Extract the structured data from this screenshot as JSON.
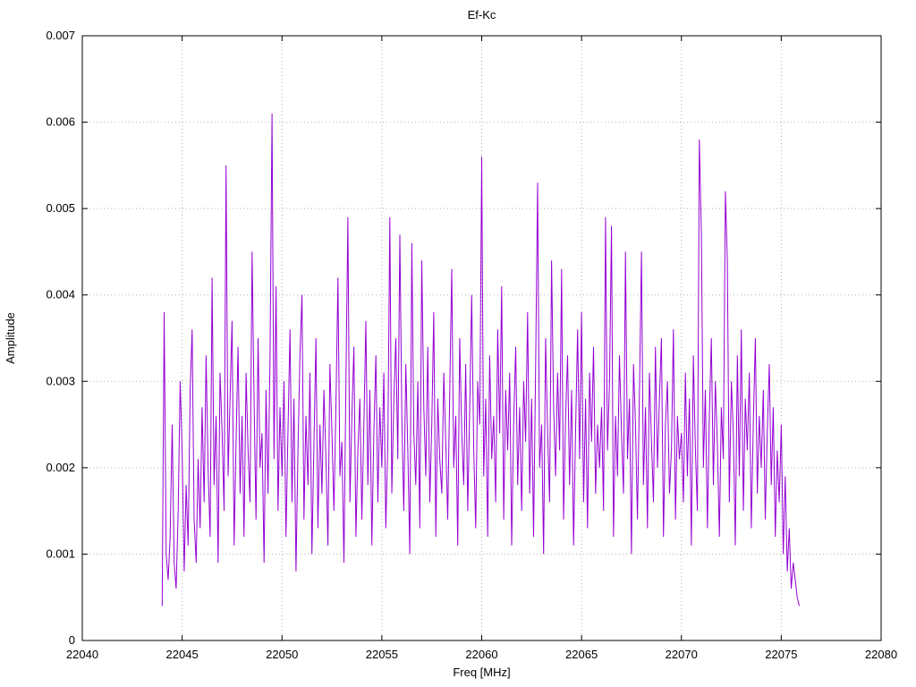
{
  "chart_data": {
    "type": "line",
    "title": "Ef-Kc",
    "xlabel": "Freq [MHz]",
    "ylabel": "Amplitude",
    "xlim": [
      22040,
      22080
    ],
    "ylim": [
      0,
      0.007
    ],
    "xticks": [
      22040,
      22045,
      22050,
      22055,
      22060,
      22065,
      22070,
      22075,
      22080
    ],
    "xtick_labels": [
      "22040",
      "22045",
      "22050",
      "22055",
      "22060",
      "22065",
      "22070",
      "22075",
      "22080"
    ],
    "yticks": [
      0,
      0.001,
      0.002,
      0.003,
      0.004,
      0.005,
      0.006,
      0.007
    ],
    "ytick_labels": [
      "0",
      "0.001",
      "0.002",
      "0.003",
      "0.004",
      "0.005",
      "0.006",
      "0.007"
    ],
    "grid": true,
    "grid_color": "#b0b0b0",
    "line_color": "#9400d3",
    "series": [
      {
        "name": "Ef-Kc",
        "x_start": 22044.0,
        "x_step": 0.1,
        "y_scale": 0.0001,
        "values": [
          4,
          38,
          10,
          7,
          12,
          25,
          9,
          6,
          15,
          30,
          22,
          8,
          18,
          11,
          29,
          36,
          14,
          9,
          21,
          13,
          27,
          16,
          33,
          20,
          12,
          42,
          18,
          26,
          9,
          31,
          24,
          15,
          55,
          19,
          28,
          37,
          11,
          23,
          34,
          17,
          26,
          12,
          31,
          22,
          16,
          45,
          28,
          14,
          35,
          20,
          24,
          9,
          29,
          17,
          33,
          61,
          21,
          41,
          15,
          27,
          19,
          30,
          12,
          24,
          36,
          16,
          28,
          8,
          22,
          33,
          40,
          14,
          26,
          18,
          31,
          10,
          23,
          35,
          13,
          25,
          17,
          29,
          21,
          11,
          32,
          24,
          15,
          27,
          42,
          19,
          23,
          9,
          30,
          49,
          16,
          26,
          34,
          12,
          22,
          28,
          14,
          25,
          37,
          18,
          29,
          11,
          24,
          33,
          16,
          27,
          20,
          31,
          13,
          23,
          49,
          17,
          28,
          35,
          21,
          47,
          26,
          15,
          32,
          22,
          10,
          46,
          24,
          18,
          30,
          13,
          44,
          27,
          19,
          34,
          16,
          25,
          38,
          12,
          28,
          21,
          17,
          31,
          23,
          14,
          29,
          43,
          20,
          26,
          11,
          35,
          24,
          18,
          32,
          15,
          27,
          40,
          22,
          13,
          30,
          25,
          56,
          19,
          28,
          12,
          33,
          21,
          26,
          16,
          36,
          24,
          41,
          14,
          29,
          22,
          31,
          11,
          25,
          34,
          18,
          27,
          15,
          30,
          23,
          38,
          17,
          28,
          12,
          32,
          53,
          20,
          25,
          10,
          35,
          24,
          16,
          44,
          27,
          19,
          31,
          22,
          43,
          14,
          26,
          33,
          18,
          29,
          11,
          24,
          36,
          21,
          38,
          16,
          28,
          13,
          31,
          23,
          34,
          17,
          25,
          20,
          27,
          15,
          49,
          22,
          30,
          48,
          12,
          26,
          19,
          33,
          24,
          17,
          45,
          21,
          28,
          10,
          32,
          25,
          14,
          29,
          45,
          18,
          27,
          13,
          31,
          23,
          16,
          34,
          20,
          28,
          35,
          12,
          25,
          30,
          17,
          22,
          36,
          14,
          26,
          21,
          24,
          16,
          31,
          19,
          28,
          11,
          33,
          22,
          15,
          58,
          47,
          20,
          29,
          13,
          26,
          35,
          18,
          30,
          23,
          12,
          27,
          21,
          52,
          44,
          16,
          30,
          24,
          11,
          33,
          19,
          36,
          15,
          28,
          22,
          31,
          13,
          25,
          35,
          17,
          26,
          20,
          29,
          14,
          24,
          32,
          18,
          27,
          12,
          22,
          16,
          25,
          10,
          19,
          8,
          13,
          6,
          9,
          7,
          5,
          4
        ]
      }
    ]
  }
}
